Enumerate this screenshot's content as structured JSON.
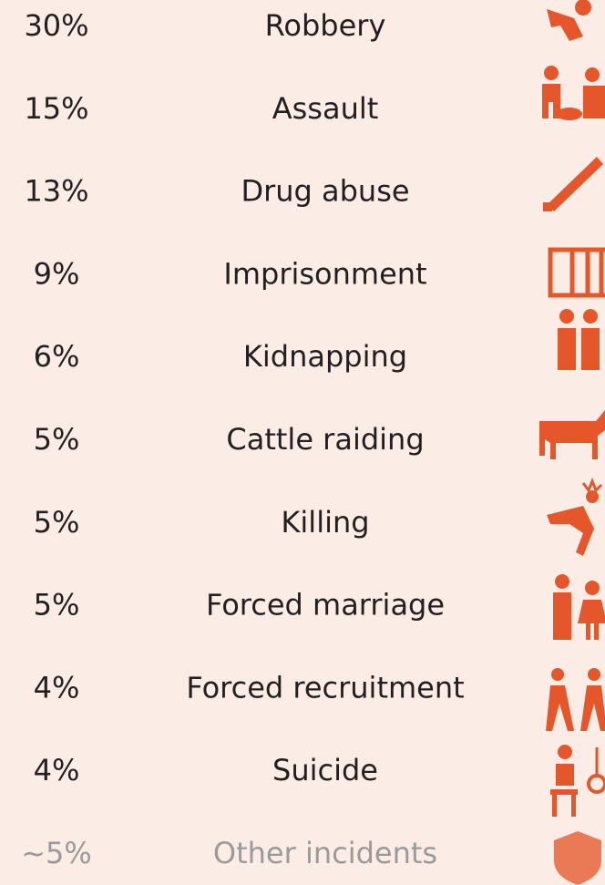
{
  "rows": [
    {
      "percent": "30%",
      "label": "Robbery"
    },
    {
      "percent": "15%",
      "label": "Assault"
    },
    {
      "percent": "13%",
      "label": "Drug abuse"
    },
    {
      "percent": "9%",
      "label": "Imprisonment"
    },
    {
      "percent": "6%",
      "label": "Kidnapping"
    },
    {
      "percent": "5%",
      "label": "Cattle raiding"
    },
    {
      "percent": "5%",
      "label": "Killing"
    },
    {
      "percent": "5%",
      "label": "Forced marriage"
    },
    {
      "percent": "4%",
      "label": "Forced recruitment"
    },
    {
      "percent": "4%",
      "label": "Suicide"
    },
    {
      "percent": "~5%",
      "label": "Other incidents"
    }
  ]
}
